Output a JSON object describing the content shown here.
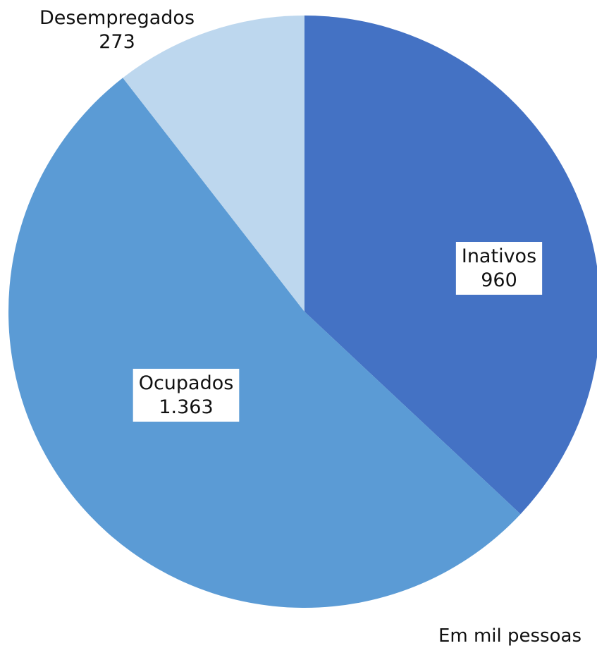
{
  "chart_data": {
    "type": "pie",
    "title": "",
    "unit_note": "Em mil pessoas",
    "slices": [
      {
        "label": "Inativos",
        "value_text": "960",
        "value": 960,
        "color": "#4472c4",
        "label_box": true
      },
      {
        "label": "Ocupados",
        "value_text": "1.363",
        "value": 1363,
        "color": "#5b9bd5",
        "label_box": true
      },
      {
        "label": "Desempregados",
        "value_text": "273",
        "value": 273,
        "color": "#bdd7ee",
        "label_box": false
      }
    ],
    "start_angle": "12 o'clock",
    "direction": "clockwise",
    "legend": "none"
  }
}
